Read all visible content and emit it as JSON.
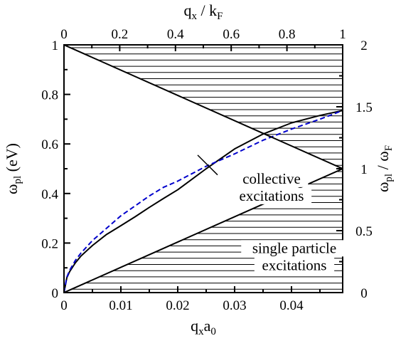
{
  "chart_data": {
    "type": "line",
    "axes": {
      "bottom": {
        "label_main": "q",
        "label_sub1": "x",
        "label_main2": "a",
        "label_sub2": "0",
        "range": [
          0,
          0.049
        ],
        "ticks": [
          0,
          0.01,
          0.02,
          0.03,
          0.04
        ],
        "tick_labels": [
          "0",
          "0.01",
          "0.02",
          "0.03",
          "0.04"
        ]
      },
      "top": {
        "label_main": "q",
        "label_sub1": "x",
        "label_mid": " / k",
        "label_sub2": "F",
        "range": [
          0,
          1
        ],
        "ticks": [
          0,
          0.2,
          0.4,
          0.6,
          0.8,
          1
        ],
        "tick_labels": [
          "0",
          "0.2",
          "0.4",
          "0.6",
          "0.8",
          "1"
        ]
      },
      "left": {
        "label_main": "ω",
        "label_sub": "pl",
        "label_unit": " (eV)",
        "range": [
          0,
          1
        ],
        "ticks": [
          0,
          0.2,
          0.4,
          0.6,
          0.8,
          1
        ],
        "tick_labels": [
          "0",
          "0.2",
          "0.4",
          "0.6",
          "0.8",
          "1"
        ]
      },
      "right": {
        "label_main1": "ω",
        "label_sub1": "pl",
        "label_mid": " / ω",
        "label_sub2": "F",
        "range": [
          0,
          2
        ],
        "ticks": [
          0,
          0.5,
          1,
          1.5,
          2
        ],
        "tick_labels": [
          "0",
          "0.5",
          "1",
          "1.5",
          "2"
        ]
      }
    },
    "series": [
      {
        "style": "solid",
        "color": "#000000",
        "points": [
          [
            0.0,
            0.0
          ],
          [
            0.0005,
            0.06
          ],
          [
            0.001,
            0.085
          ],
          [
            0.002,
            0.12
          ],
          [
            0.003,
            0.148
          ],
          [
            0.005,
            0.19
          ],
          [
            0.0075,
            0.235
          ],
          [
            0.01,
            0.27
          ],
          [
            0.0125,
            0.306
          ],
          [
            0.015,
            0.344
          ],
          [
            0.0175,
            0.38
          ],
          [
            0.02,
            0.415
          ],
          [
            0.025,
            0.5
          ],
          [
            0.03,
            0.58
          ],
          [
            0.035,
            0.64
          ],
          [
            0.04,
            0.685
          ],
          [
            0.045,
            0.715
          ],
          [
            0.049,
            0.735
          ]
        ]
      },
      {
        "style": "dashed",
        "color": "#0000cc",
        "points": [
          [
            0.0,
            0.0
          ],
          [
            0.0005,
            0.062
          ],
          [
            0.001,
            0.09
          ],
          [
            0.002,
            0.13
          ],
          [
            0.003,
            0.16
          ],
          [
            0.005,
            0.21
          ],
          [
            0.0075,
            0.26
          ],
          [
            0.01,
            0.31
          ],
          [
            0.0125,
            0.35
          ],
          [
            0.015,
            0.39
          ],
          [
            0.0175,
            0.425
          ],
          [
            0.02,
            0.45
          ],
          [
            0.025,
            0.51
          ],
          [
            0.03,
            0.56
          ],
          [
            0.035,
            0.615
          ],
          [
            0.04,
            0.66
          ],
          [
            0.045,
            0.7
          ],
          [
            0.049,
            0.735
          ]
        ]
      },
      {
        "style": "solid",
        "color": "#000000",
        "points": [
          [
            0.0,
            1.0
          ],
          [
            0.049,
            0.5
          ]
        ]
      },
      {
        "style": "solid",
        "color": "#000000",
        "points": [
          [
            0.0,
            0.0
          ],
          [
            0.049,
            0.5
          ]
        ]
      }
    ],
    "regions": [
      {
        "name": "upper-continuum",
        "fill": "horizontal-hatch",
        "polygon": [
          [
            0.0,
            1.0
          ],
          [
            0.049,
            1.0
          ],
          [
            0.049,
            0.5
          ]
        ]
      },
      {
        "name": "lower-continuum",
        "fill": "horizontal-hatch",
        "polygon": [
          [
            0.0,
            0.0
          ],
          [
            0.049,
            0.5
          ],
          [
            0.049,
            0.0
          ]
        ]
      }
    ],
    "annotations": [
      {
        "lines": [
          "collective",
          "excitations"
        ],
        "x": 0.0365,
        "y": 0.44,
        "pointer_to": [
          0.0235,
          0.555
        ],
        "pointer_from": [
          0.027,
          0.475
        ]
      },
      {
        "lines": [
          "single particle",
          "excitations"
        ],
        "x": 0.0405,
        "y": 0.16
      }
    ],
    "grid": false
  }
}
